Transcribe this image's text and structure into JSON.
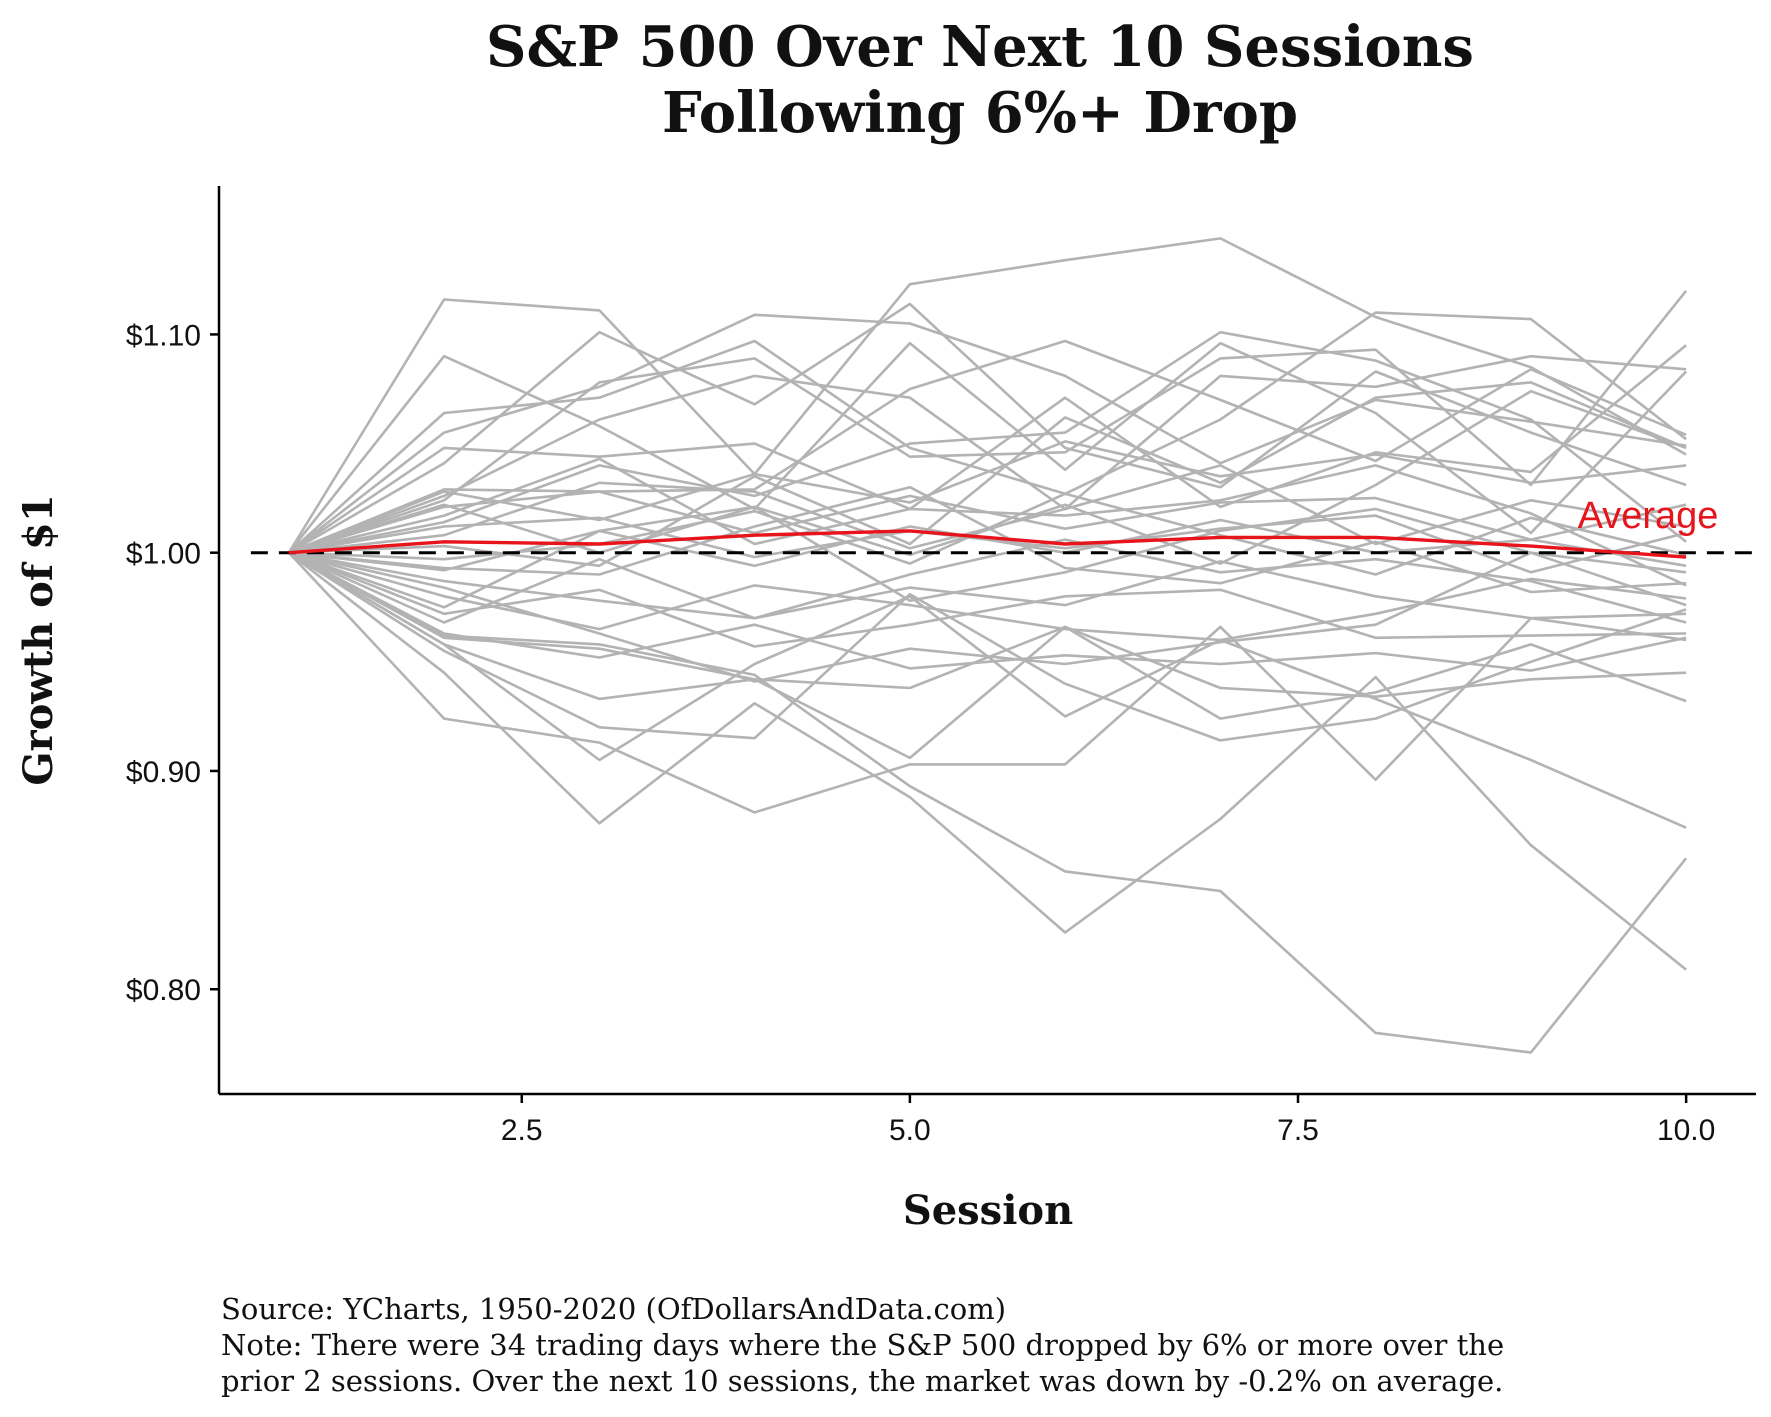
{
  "chart_data": {
    "type": "line",
    "title_lines": [
      "S&P 500 Over Next 10 Sessions",
      "Following 6%+ Drop"
    ],
    "xlabel": "Session",
    "ylabel": "Growth of $1",
    "x_ticks": [
      "2.5",
      "5.0",
      "7.5",
      "10.0"
    ],
    "x_tick_values": [
      2.5,
      5.0,
      7.5,
      10.0
    ],
    "y_ticks": [
      "$0.80",
      "$0.90",
      "$1.00",
      "$1.10"
    ],
    "y_tick_values": [
      0.8,
      0.9,
      1.0,
      1.1
    ],
    "xlim": [
      0.55,
      10.45
    ],
    "ylim": [
      0.752,
      1.168
    ],
    "grid": false,
    "x": [
      1,
      2,
      3,
      4,
      5,
      6,
      7,
      8,
      9,
      10
    ],
    "reference_line": {
      "y": 1.0,
      "style": "dashed",
      "color": "#000000"
    },
    "colors": {
      "series": "#b3b3b3",
      "average": "#e8141c"
    },
    "average_label": "Average",
    "series": [
      {
        "values": [
          1.0,
          1.116,
          1.111,
          1.036,
          1.123,
          1.134,
          1.144,
          1.108,
          1.085,
          1.045
        ]
      },
      {
        "values": [
          1.0,
          1.09,
          1.058,
          1.02,
          1.096,
          1.038,
          1.096,
          1.064,
          1.009,
          1.083
        ]
      },
      {
        "values": [
          1.0,
          1.055,
          1.076,
          1.109,
          1.105,
          1.081,
          1.041,
          1.07,
          1.06,
          1.049
        ]
      },
      {
        "values": [
          1.0,
          1.064,
          1.071,
          1.097,
          1.048,
          1.027,
          1.061,
          1.11,
          1.107,
          1.052
        ]
      },
      {
        "values": [
          1.0,
          1.024,
          1.078,
          1.089,
          1.044,
          1.046,
          1.089,
          1.093,
          1.031,
          1.12
        ]
      },
      {
        "values": [
          1.0,
          1.041,
          1.101,
          1.068,
          1.114,
          1.048,
          1.03,
          1.083,
          1.055,
          1.031
        ]
      },
      {
        "values": [
          1.0,
          1.026,
          1.061,
          1.081,
          1.071,
          1.02,
          1.081,
          1.076,
          1.09,
          1.084
        ]
      },
      {
        "values": [
          1.0,
          1.048,
          1.044,
          1.05,
          1.02,
          1.071,
          1.021,
          1.046,
          1.037,
          1.095
        ]
      },
      {
        "values": [
          1.0,
          1.028,
          1.015,
          1.036,
          1.023,
          1.051,
          1.035,
          1.045,
          1.032,
          1.04
        ]
      },
      {
        "values": [
          1.0,
          1.021,
          1.028,
          1.009,
          1.026,
          1.011,
          1.023,
          1.025,
          1.006,
          1.022
        ]
      },
      {
        "values": [
          1.0,
          1.008,
          1.032,
          1.028,
          1.002,
          1.02,
          1.04,
          1.004,
          1.024,
          1.012
        ]
      },
      {
        "values": [
          1.0,
          1.012,
          1.016,
          0.998,
          1.01,
          1.002,
          1.011,
          1.017,
          0.991,
          1.009
        ]
      },
      {
        "values": [
          1.0,
          0.997,
          1.004,
          1.019,
          0.995,
          1.027,
          1.008,
          0.99,
          1.016,
          0.999
        ]
      },
      {
        "values": [
          1.0,
          0.993,
          0.99,
          1.012,
          1.03,
          0.993,
          0.986,
          1.005,
          0.982,
          0.986
        ]
      },
      {
        "values": [
          1.0,
          0.987,
          0.978,
          0.97,
          0.984,
          0.976,
          0.996,
          0.98,
          0.97,
          0.972
        ]
      },
      {
        "values": [
          1.0,
          0.98,
          0.965,
          0.985,
          0.976,
          0.965,
          0.96,
          0.972,
          0.988,
          0.979
        ]
      },
      {
        "values": [
          1.0,
          0.972,
          0.983,
          0.957,
          0.967,
          0.98,
          0.983,
          0.961,
          0.962,
          0.963
        ]
      },
      {
        "values": [
          1.0,
          0.963,
          0.952,
          0.967,
          0.947,
          0.953,
          0.949,
          0.954,
          0.946,
          0.961
        ]
      },
      {
        "values": [
          1.0,
          0.961,
          0.956,
          0.942,
          0.938,
          0.966,
          0.938,
          0.934,
          0.942,
          0.945
        ]
      },
      {
        "values": [
          1.0,
          0.958,
          0.933,
          0.942,
          0.906,
          0.966,
          0.924,
          0.936,
          0.958,
          0.932
        ]
      },
      {
        "values": [
          1.0,
          0.955,
          0.92,
          0.915,
          0.981,
          0.94,
          0.914,
          0.924,
          0.95,
          0.974
        ]
      },
      {
        "values": [
          1.0,
          0.958,
          0.905,
          0.949,
          0.98,
          0.925,
          0.96,
          0.933,
          0.905,
          0.874
        ]
      },
      {
        "values": [
          1.0,
          0.924,
          0.913,
          0.881,
          0.903,
          0.903,
          0.966,
          0.896,
          0.97,
          0.96
        ]
      },
      {
        "values": [
          1.0,
          0.945,
          0.876,
          0.931,
          0.888,
          0.826,
          0.878,
          0.943,
          0.866,
          0.809
        ]
      },
      {
        "values": [
          1.0,
          0.962,
          0.958,
          0.944,
          0.893,
          0.854,
          0.845,
          0.78,
          0.771,
          0.86
        ]
      },
      {
        "values": [
          1.0,
          1.022,
          1.0,
          1.021,
          0.999,
          1.022,
          0.995,
          1.031,
          1.074,
          1.048
        ]
      },
      {
        "values": [
          1.0,
          1.014,
          1.04,
          1.026,
          1.05,
          1.055,
          1.101,
          1.088,
          1.061,
          1.005
        ]
      },
      {
        "values": [
          1.0,
          1.029,
          1.028,
          1.029,
          1.075,
          1.097,
          1.07,
          1.042,
          1.084,
          1.054
        ]
      },
      {
        "values": [
          1.0,
          0.975,
          1.01,
          1.021,
          0.978,
          0.991,
          1.01,
          1.02,
          1.0,
          0.976
        ]
      },
      {
        "values": [
          1.0,
          0.968,
          0.997,
          0.97,
          0.99,
          1.006,
          0.991,
          0.997,
          0.987,
          0.968
        ]
      },
      {
        "values": [
          1.0,
          1.003,
          0.994,
          1.035,
          1.004,
          1.062,
          1.032,
          1.071,
          1.078,
          1.048
        ]
      },
      {
        "values": [
          1.0,
          0.984,
          0.963,
          0.941,
          0.956,
          0.949,
          0.959,
          0.967,
          1.0,
          0.991
        ]
      },
      {
        "values": [
          1.0,
          1.017,
          1.043,
          1.004,
          1.02,
          1.017,
          1.024,
          1.04,
          1.018,
          0.985
        ]
      },
      {
        "values": [
          1.0,
          0.992,
          1.01,
          0.994,
          1.012,
          1.0,
          1.015,
          1.0,
          1.006,
          0.994
        ]
      }
    ],
    "average": [
      1.0,
      1.005,
      1.004,
      1.008,
      1.01,
      1.004,
      1.007,
      1.007,
      1.003,
      0.998
    ]
  },
  "footer": {
    "source": "Source:  YCharts, 1950-2020 (OfDollarsAndData.com)",
    "note_line1": "Note: There were 34 trading days where the S&P 500 dropped by 6% or more over the",
    "note_line2": "prior 2 sessions. Over the next 10 sessions, the market was down by -0.2% on average."
  }
}
